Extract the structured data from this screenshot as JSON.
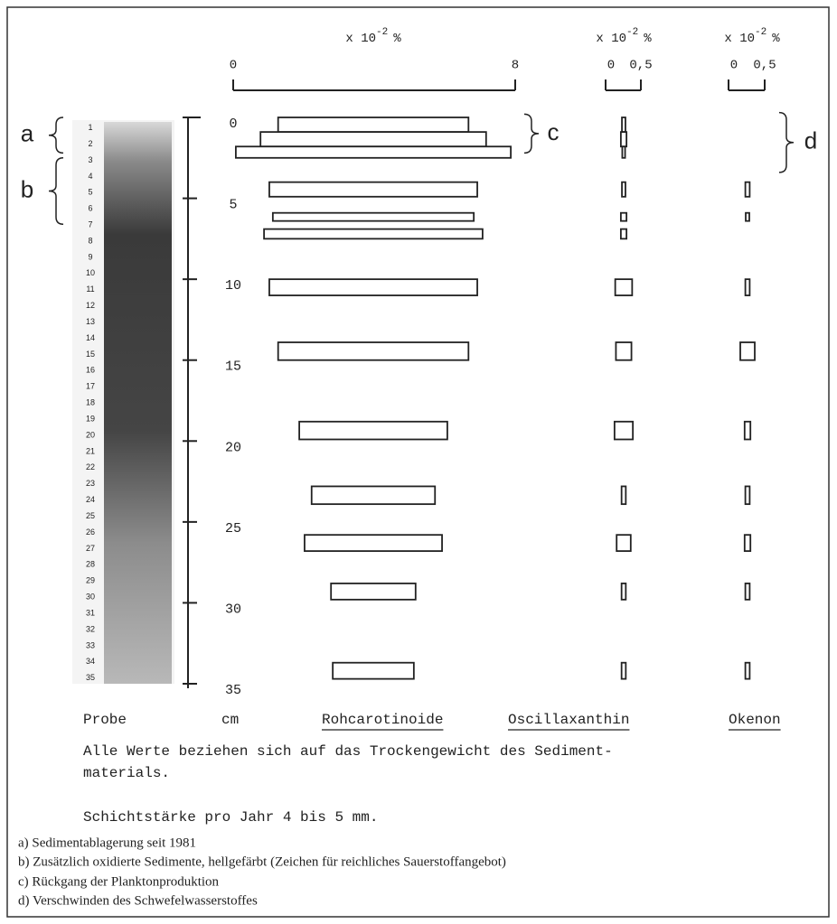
{
  "chart_data": {
    "type": "kite",
    "columns": [
      {
        "name": "Rohcarotinoide",
        "header": {
          "prefix": "x 10",
          "exponent": "-2",
          "unit": "%"
        },
        "xlim": [
          0,
          8
        ],
        "xticks": [
          0,
          8
        ],
        "values": [
          5.4,
          6.4,
          7.8,
          5.9,
          5.7,
          6.2,
          5.9,
          5.4,
          4.2,
          3.5,
          3.9,
          2.4,
          2.3
        ]
      },
      {
        "name": "Oscillaxanthin",
        "header": {
          "prefix": "x 10",
          "exponent": "-2",
          "unit": "%"
        },
        "xlim": [
          0,
          0.5
        ],
        "xticks": [
          0,
          {
            "value": 0.5,
            "label": "0,5"
          }
        ],
        "values": [
          0.05,
          0.08,
          0.04,
          0.05,
          0.08,
          0.08,
          0.24,
          0.22,
          0.26,
          0.06,
          0.2,
          0.06,
          0.06
        ]
      },
      {
        "name": "Okenon",
        "header": {
          "prefix": "x 10",
          "exponent": "-2",
          "unit": "%"
        },
        "xlim": [
          0,
          0.5
        ],
        "xticks": [
          0,
          {
            "value": 0.5,
            "label": "0,5"
          }
        ],
        "values": [
          null,
          null,
          null,
          0.06,
          0.05,
          null,
          0.06,
          0.2,
          0.08,
          0.06,
          0.08,
          0.06,
          0.06
        ]
      }
    ],
    "depth_top": [
      0,
      0.9,
      1.8,
      4.0,
      5.9,
      6.9,
      10.0,
      13.9,
      18.8,
      22.8,
      25.8,
      28.8,
      33.7
    ],
    "depth_bottom": [
      0.9,
      1.8,
      2.5,
      4.9,
      6.4,
      7.5,
      11.0,
      15.0,
      19.9,
      23.9,
      26.8,
      29.8,
      34.7
    ],
    "ylim": [
      0,
      35
    ],
    "yticks": [
      0,
      5,
      10,
      15,
      20,
      25,
      30,
      35
    ],
    "y_label": "cm",
    "core_label": "Probe",
    "core_numbers": [
      1,
      2,
      3,
      4,
      5,
      6,
      7,
      8,
      9,
      10,
      11,
      12,
      13,
      14,
      15,
      16,
      17,
      18,
      19,
      20,
      21,
      22,
      23,
      24,
      25,
      26,
      27,
      28,
      29,
      30,
      31,
      32,
      33,
      34,
      35
    ],
    "markers": [
      {
        "letter": "a",
        "from": 0,
        "to": 2.2
      },
      {
        "letter": "b",
        "from": 2.5,
        "to": 6.6
      },
      {
        "letter": "c",
        "from": -0.2,
        "to": 2.2
      },
      {
        "letter": "d",
        "from": -0.3,
        "to": 3.4
      }
    ]
  },
  "notes": [
    "Alle Werte beziehen sich auf das Trockengewicht des Sediment-",
    "materials.",
    "Schichtstärke pro Jahr 4 bis 5 mm."
  ],
  "legend": [
    "a) Sedimentablagerung seit 1981",
    "b) Zusätzlich oxidierte Sedimente, hellgefärbt (Zeichen für reichliches Sauerstoffangebot)",
    "c) Rückgang der Planktonproduktion",
    "d) Verschwinden des Schwefelwasserstoffes"
  ]
}
